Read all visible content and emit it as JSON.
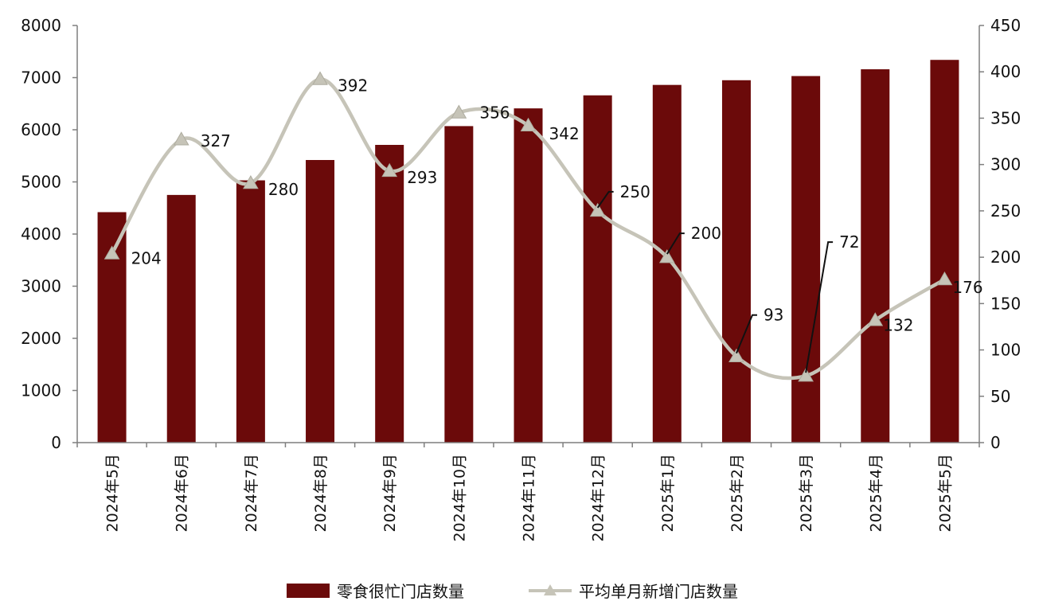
{
  "chart_data": {
    "type": "bar",
    "categories": [
      "2024年5月",
      "2024年6月",
      "2024年7月",
      "2024年8月",
      "2024年9月",
      "2024年10月",
      "2024年11月",
      "2024年12月",
      "2025年1月",
      "2025年2月",
      "2025年3月",
      "2025年4月",
      "2025年5月"
    ],
    "series": [
      {
        "name": "零食很忙门店数量",
        "type": "bar",
        "axis": "left",
        "values": [
          4420,
          4750,
          5030,
          5420,
          5710,
          6070,
          6410,
          6660,
          6860,
          6950,
          7030,
          7160,
          7340
        ]
      },
      {
        "name": "平均单月新增门店数量",
        "type": "line",
        "axis": "right",
        "marker": "triangle",
        "values": [
          204,
          327,
          280,
          392,
          293,
          356,
          342,
          250,
          200,
          93,
          72,
          132,
          176
        ],
        "data_labels": [
          "204",
          "327",
          "280",
          "392",
          "293",
          "356",
          "342",
          "250",
          "200",
          "93",
          "72",
          "132",
          "176"
        ]
      }
    ],
    "y_left": {
      "min": 0,
      "max": 8000,
      "ticks": [
        "0",
        "1000",
        "2000",
        "3000",
        "4000",
        "5000",
        "6000",
        "7000",
        "8000"
      ]
    },
    "y_right": {
      "min": 0,
      "max": 450,
      "ticks": [
        "0",
        "50",
        "100",
        "150",
        "200",
        "250",
        "300",
        "350",
        "400",
        "450"
      ]
    },
    "legend_position": "bottom",
    "grid": false,
    "colors": {
      "bar": "#6b0a0a",
      "line": "#c6c4b8",
      "axis": "#7f7f7f"
    }
  }
}
